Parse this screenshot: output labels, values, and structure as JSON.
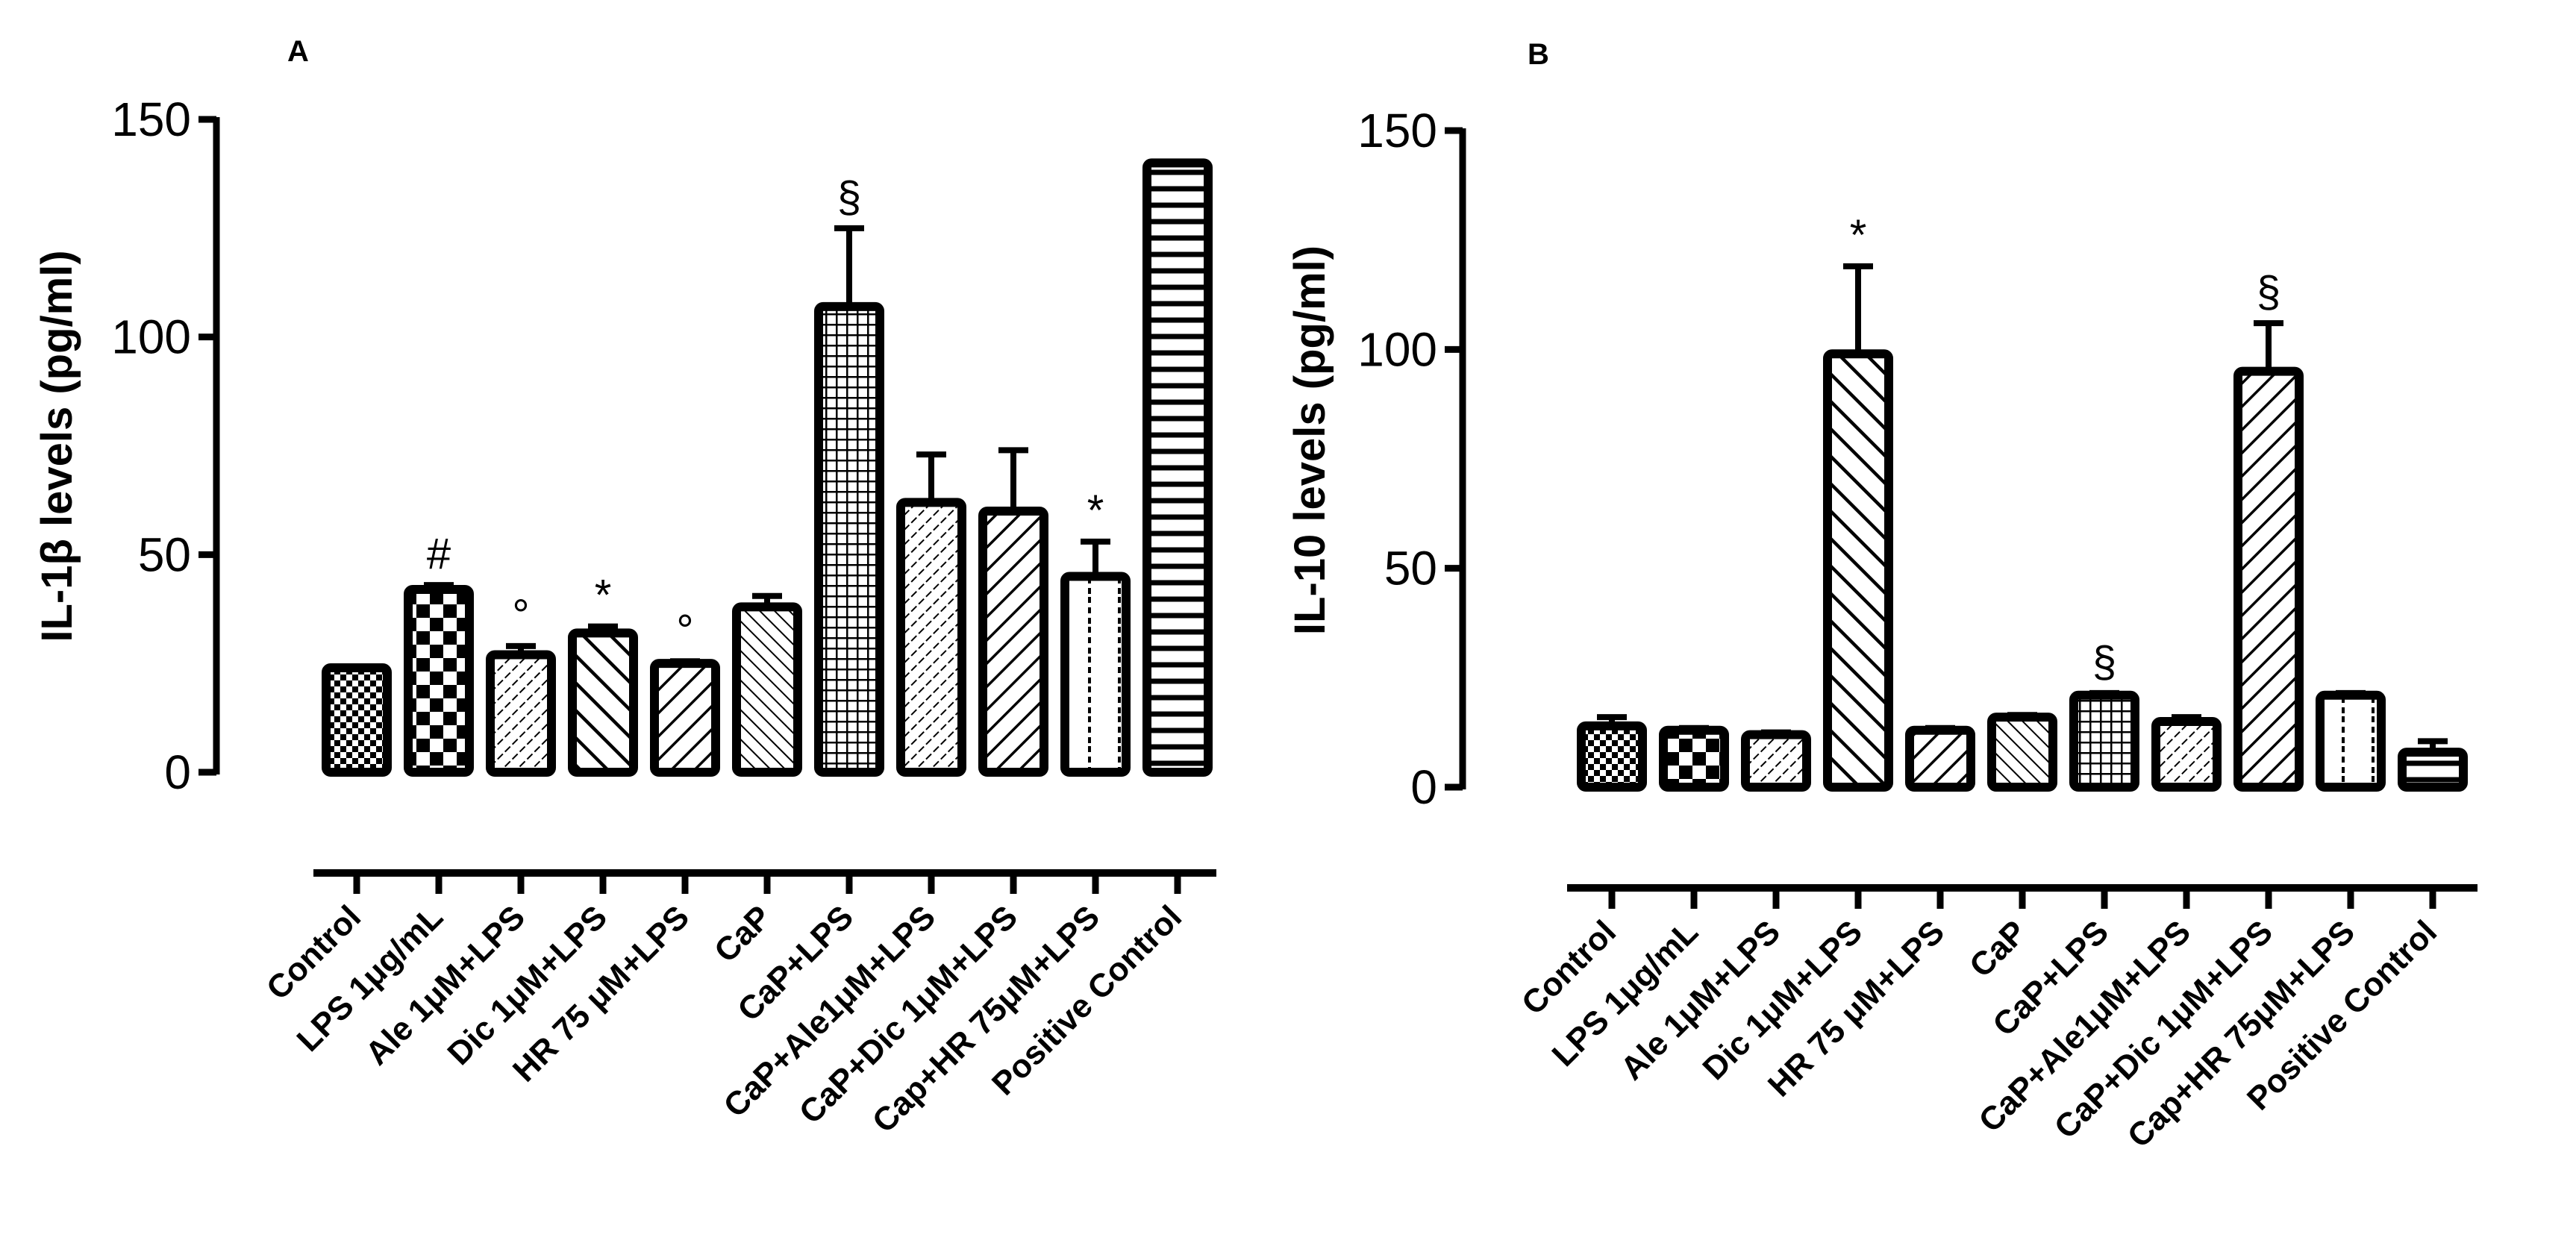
{
  "chart_data": [
    {
      "panel": "A",
      "type": "bar",
      "ylabel": "IL-1β levels (pg/ml)",
      "ylim": [
        0,
        150
      ],
      "yticks": [
        0,
        50,
        100,
        150
      ],
      "ytick_labels": [
        "0",
        "50",
        "100",
        "150"
      ],
      "categories": [
        "Control",
        "LPS 1μg/mL",
        "Ale 1μM+LPS",
        "Dic 1μM+LPS",
        "HR 75 μM+LPS",
        "CaP",
        "CaP+LPS",
        "CaP+Ale1μM+LPS",
        "CaP+Dic 1μM+LPS",
        "Cap+HR 75μM+LPS",
        "Positive Control"
      ],
      "values": [
        24,
        42,
        27,
        32,
        25,
        38,
        107,
        62,
        60,
        45,
        140
      ],
      "errors": [
        0,
        1,
        2,
        1.5,
        0.5,
        2.5,
        18,
        11,
        14,
        8,
        0
      ],
      "annotations": [
        "",
        "#",
        "°",
        "*",
        "°",
        "",
        "§",
        "",
        "",
        "*",
        ""
      ],
      "patterns": [
        "checkSmall",
        "checkLarge",
        "diagFine",
        "diagBack",
        "diagFwd",
        "diagBackFine",
        "grid",
        "diagFine",
        "diagFwd",
        "vertLines",
        "horizLines"
      ]
    },
    {
      "panel": "B",
      "type": "bar",
      "ylabel": "IL-10 levels (pg/ml)",
      "ylim": [
        0,
        150
      ],
      "yticks": [
        0,
        50,
        100,
        150
      ],
      "ytick_labels": [
        "0",
        "50",
        "100",
        "150"
      ],
      "categories": [
        "Control",
        "LPS 1μg/mL",
        "Ale 1μM+LPS",
        "Dic 1μM+LPS",
        "HR 75 μM+LPS",
        "CaP",
        "CaP+LPS",
        "CaP+Ale1μM+LPS",
        "CaP+Dic 1μM+LPS",
        "Cap+HR 75μM+LPS",
        "Positive Control"
      ],
      "values": [
        14,
        13,
        12,
        99,
        13,
        16,
        21,
        15,
        95,
        21,
        8
      ],
      "errors": [
        2,
        0.5,
        0.5,
        20,
        0.5,
        0.5,
        0.5,
        1,
        11,
        0.5,
        2.5
      ],
      "annotations": [
        "",
        "",
        "",
        "*",
        "",
        "",
        "§",
        "",
        "§",
        "",
        ""
      ],
      "patterns": [
        "checkSmall",
        "checkLarge",
        "diagFine",
        "diagBack",
        "diagFwd",
        "diagBackFine",
        "grid",
        "diagFine",
        "diagFwd",
        "vertLines",
        "horizLines"
      ]
    }
  ]
}
